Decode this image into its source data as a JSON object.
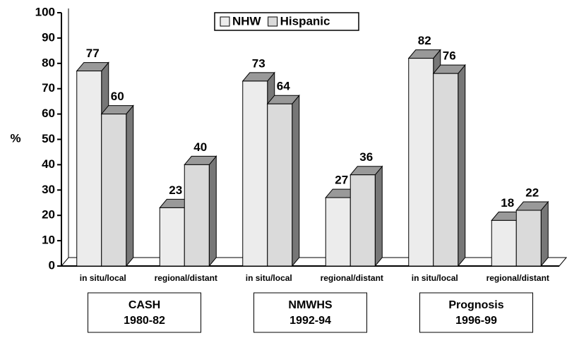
{
  "chart_data": {
    "type": "bar3d",
    "y_label": "%",
    "categories": [
      "in situ/local",
      "regional/distant",
      "in situ/local",
      "regional/distant",
      "in situ/local",
      "regional/distant"
    ],
    "series": [
      {
        "name": "NHW",
        "color": "#ececec",
        "values": [
          77,
          23,
          73,
          27,
          82,
          18
        ]
      },
      {
        "name": "Hispanic",
        "color": "#dadada",
        "values": [
          60,
          40,
          64,
          36,
          76,
          22
        ]
      }
    ],
    "groups": [
      {
        "label": "CASH",
        "period": "1980-82"
      },
      {
        "label": "NMWHS",
        "period": "1992-94"
      },
      {
        "label": "Prognosis",
        "period": "1996-99"
      }
    ],
    "ylim": [
      0,
      100
    ],
    "yticks": [
      0,
      10,
      20,
      30,
      40,
      50,
      60,
      70,
      80,
      90,
      100
    ],
    "legend": "top"
  }
}
